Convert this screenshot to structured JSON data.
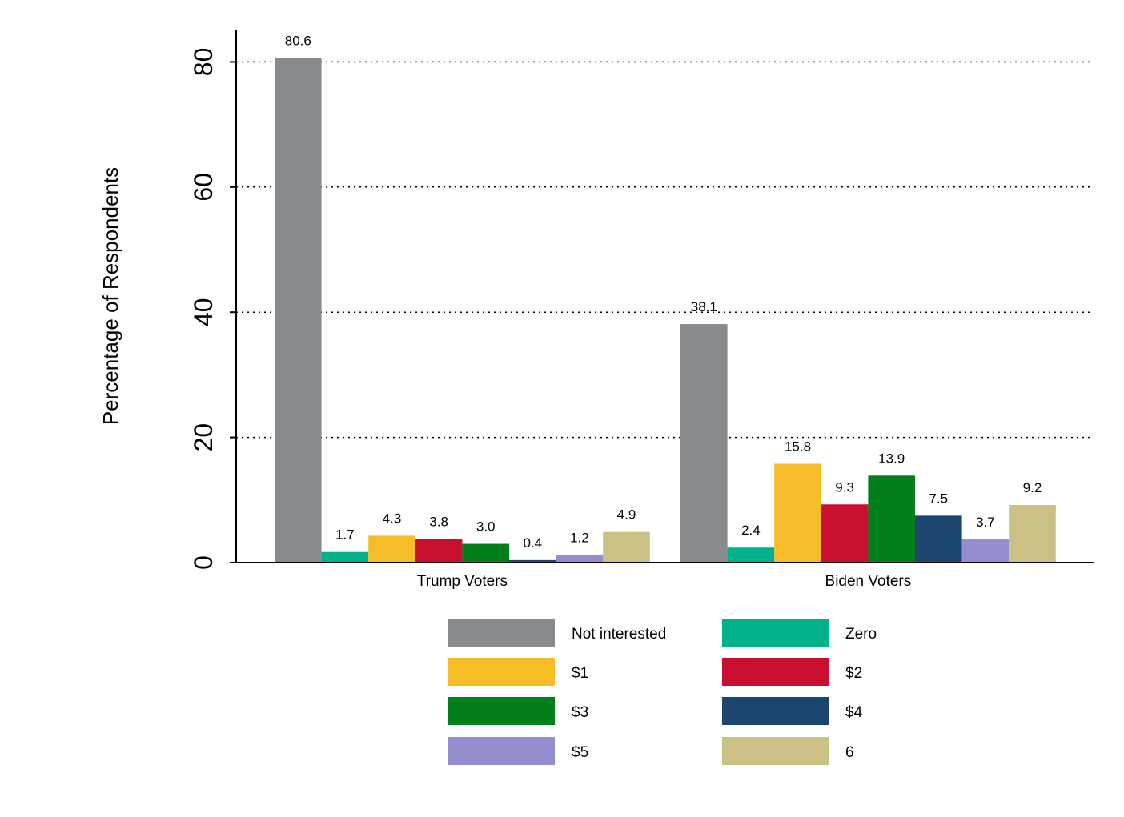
{
  "chart_data": {
    "type": "bar",
    "title": "",
    "xlabel": "",
    "ylabel": "Percentage of Respondents",
    "ylim": [
      0,
      85
    ],
    "yticks": [
      0,
      20,
      40,
      60,
      80
    ],
    "grid": true,
    "legend_position": "bottom",
    "categories": [
      "Trump Voters",
      "Biden Voters"
    ],
    "series": [
      {
        "name": "Not interested",
        "color": "#888b8d",
        "values": [
          80.6,
          38.1
        ],
        "labels": [
          "80.6",
          "38.1"
        ]
      },
      {
        "name": "Zero",
        "color": "#00b28c",
        "values": [
          1.7,
          2.4
        ],
        "labels": [
          "1.7",
          "2.4"
        ]
      },
      {
        "name": "$1",
        "color": "#f5bd28",
        "values": [
          4.3,
          15.8
        ],
        "labels": [
          "4.3",
          "15.8"
        ]
      },
      {
        "name": "$2",
        "color": "#c8102e",
        "values": [
          3.8,
          9.3
        ],
        "labels": [
          "3.8",
          "9.3"
        ]
      },
      {
        "name": "$3",
        "color": "#007f1a",
        "values": [
          3.0,
          13.9
        ],
        "labels": [
          "3.0",
          "13.9"
        ]
      },
      {
        "name": "$4",
        "color": "#1c456f",
        "values": [
          0.4,
          7.5
        ],
        "labels": [
          "0.4",
          "7.5"
        ]
      },
      {
        "name": "$5",
        "color": "#948ecf",
        "values": [
          1.2,
          3.7
        ],
        "labels": [
          "1.2",
          "3.7"
        ]
      },
      {
        "name": "6",
        "color": "#cbc184",
        "values": [
          4.9,
          9.2
        ],
        "labels": [
          "4.9",
          "9.2"
        ]
      }
    ]
  }
}
